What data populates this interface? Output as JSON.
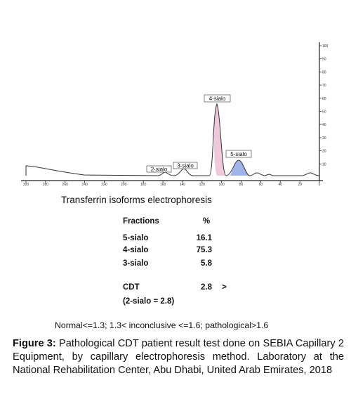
{
  "figure": {
    "x_ticks": [
      "300",
      "280",
      "260",
      "240",
      "220",
      "200",
      "180",
      "160",
      "140",
      "120",
      "100",
      "80",
      "60",
      "40",
      "20",
      "0"
    ],
    "y_ticks": [
      "100",
      "90",
      "80",
      "70",
      "60",
      "50",
      "40",
      "30",
      "20",
      "10"
    ],
    "peaks": [
      "2-sialo",
      "3-sialo",
      "4-sialo",
      "5-sialo"
    ],
    "title": "Transferrin isoforms electrophoresis",
    "table": {
      "header": [
        "Fractions",
        "%"
      ],
      "rows": [
        [
          "5-sialo",
          "16.1"
        ],
        [
          "4-sialo",
          "75.3"
        ],
        [
          "3-sialo",
          "5.8"
        ]
      ]
    },
    "cdt": {
      "label": "CDT",
      "value": "2.8",
      "flag": ">",
      "note": "(2-sialo = 2.8)"
    },
    "reference": "Normal<=1.3; 1.3< inconclusive <=1.6; pathological>1.6"
  },
  "caption": {
    "label": "Figure 3:",
    "text": "Pathological CDT patient result test done on SEBIA Capillary 2 Equipment, by capillary electrophoresis method. Laboratory at the National Rehabilitation Center, Abu Dhabi, United Arab Emirates, 2018"
  }
}
